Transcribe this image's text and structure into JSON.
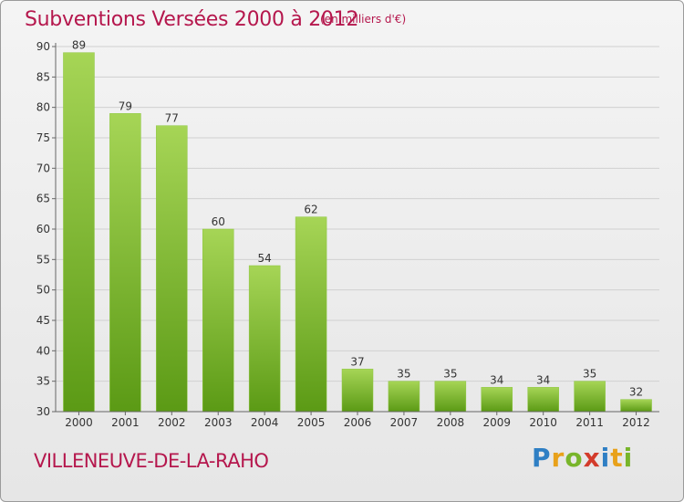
{
  "title": "Subventions Versées 2000 à 2012",
  "unit_note": "(en milliers d'€)",
  "town": "VILLENEUVE-DE-LA-RAHO",
  "logo": {
    "letters": [
      "P",
      "r",
      "o",
      "x",
      "i",
      "t",
      "i"
    ],
    "colors": [
      "#2f7fc4",
      "#e8a11a",
      "#78b52a",
      "#d33b2b",
      "#2f7fc4",
      "#e8a11a",
      "#78b52a"
    ]
  },
  "colors": {
    "bar_top": "#a6d556",
    "bar_bottom": "#5b9a15",
    "title": "#b5174d",
    "axis": "#666666",
    "grid": "#d0d0d0"
  },
  "chart_data": {
    "type": "bar",
    "title": "Subventions Versées 2000 à 2012",
    "subtitle": "(en milliers d'€)",
    "xlabel": "",
    "ylabel": "",
    "categories": [
      "2000",
      "2001",
      "2002",
      "2003",
      "2004",
      "2005",
      "2006",
      "2007",
      "2008",
      "2009",
      "2010",
      "2011",
      "2012"
    ],
    "values": [
      89,
      79,
      77,
      60,
      54,
      62,
      37,
      35,
      35,
      34,
      34,
      35,
      32
    ],
    "ylim": [
      30,
      90
    ],
    "yticks": [
      30,
      35,
      40,
      45,
      50,
      55,
      60,
      65,
      70,
      75,
      80,
      85,
      90
    ],
    "grid": true,
    "data_labels": true
  }
}
